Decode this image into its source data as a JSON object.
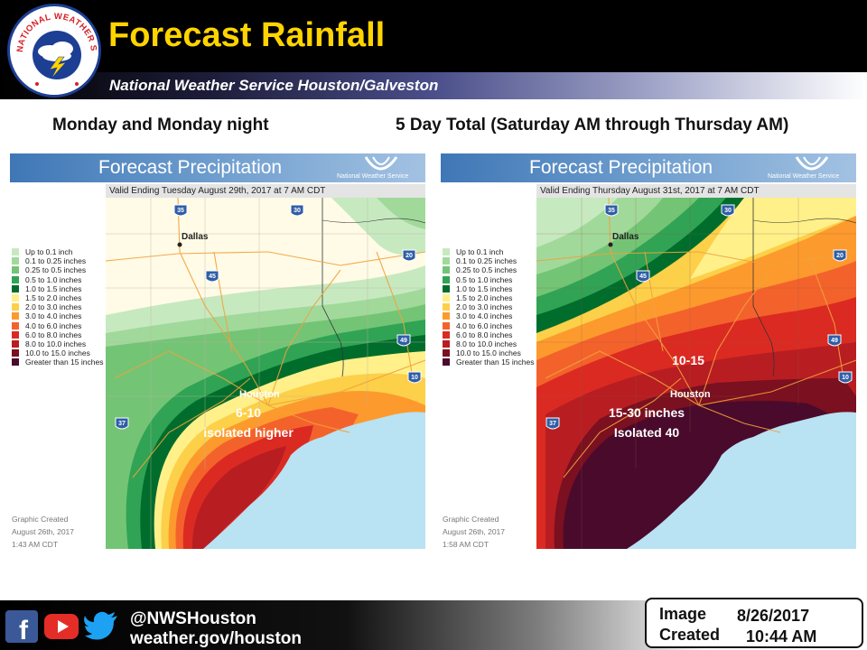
{
  "header": {
    "title": "Forecast Rainfall",
    "subtitle": "National Weather Service Houston/Galveston",
    "logo_text": "NATIONAL WEATHER SERVICE"
  },
  "colors": {
    "title_yellow": "#ffd400",
    "gulf": "#b9e2f3",
    "road": "#f0a23c",
    "interstate_shield": "#2f5ea8"
  },
  "panels": [
    {
      "heading": "Monday  and Monday night",
      "banner": "Forecast Precipitation",
      "nws_mark": "National Weather Service",
      "valid": "Valid Ending Tuesday August 29th, 2017 at 7 AM CDT",
      "graphic_created": "Graphic Created\nAugust 26th, 2017\n1:43 AM CDT",
      "cities": {
        "dallas": "Dallas",
        "houston": "Houston"
      },
      "annotations": [
        "6-10",
        "isolated higher"
      ],
      "shields": [
        "35",
        "30",
        "45",
        "20",
        "49",
        "10",
        "37"
      ]
    },
    {
      "heading": "5 Day Total  (Saturday AM through Thursday AM)",
      "banner": "Forecast Precipitation",
      "nws_mark": "National Weather Service",
      "valid": "Valid Ending Thursday August 31st, 2017 at 7 AM CDT",
      "graphic_created": "Graphic Created\nAugust 26th, 2017\n1:58 AM CDT",
      "cities": {
        "dallas": "Dallas",
        "houston": "Houston"
      },
      "annotations": [
        "10-15",
        "15-30 inches",
        "Isolated 40"
      ],
      "shields": [
        "35",
        "30",
        "45",
        "20",
        "49",
        "10",
        "37"
      ]
    }
  ],
  "legend": [
    {
      "label": "Up to 0.1 inch",
      "color": "#c7e9c0"
    },
    {
      "label": "0.1 to 0.25 inches",
      "color": "#a1d99b"
    },
    {
      "label": "0.25 to 0.5 inches",
      "color": "#74c476"
    },
    {
      "label": "0.5 to 1.0 inches",
      "color": "#31a354"
    },
    {
      "label": "1.0 to 1.5 inches",
      "color": "#006d2c"
    },
    {
      "label": "1.5 to 2.0 inches",
      "color": "#fff08a"
    },
    {
      "label": "2.0 to 3.0 inches",
      "color": "#fdd04a"
    },
    {
      "label": "3.0 to 4.0 inches",
      "color": "#fd9a2e"
    },
    {
      "label": "4.0 to 6.0 inches",
      "color": "#f4622c"
    },
    {
      "label": "6.0 to 8.0 inches",
      "color": "#db2a22"
    },
    {
      "label": "8.0 to 10.0 inches",
      "color": "#b81d22"
    },
    {
      "label": "10.0 to 15.0 inches",
      "color": "#7a1020"
    },
    {
      "label": "Greater than 15 inches",
      "color": "#4a0a2c"
    }
  ],
  "footer": {
    "handle": "@NWSHouston",
    "site": "weather.gov/houston",
    "social_icons": [
      "facebook-icon",
      "youtube-icon",
      "twitter-icon"
    ],
    "image_label_1": "Image",
    "image_label_2": "Created",
    "date": "8/26/2017",
    "time": "10:44 AM"
  }
}
